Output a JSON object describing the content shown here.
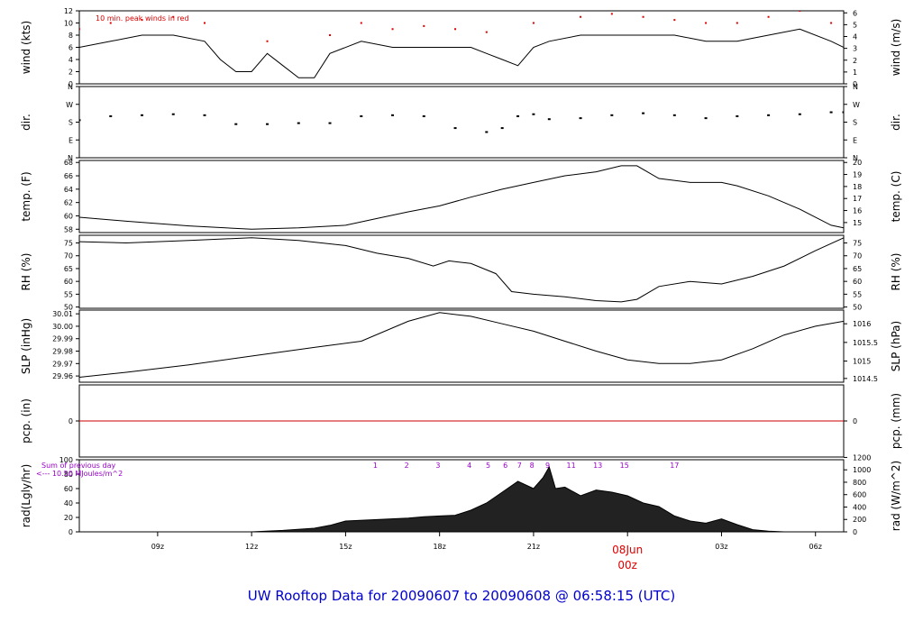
{
  "title": "UW Rooftop Data for 20090607  to  20090608 @ 06:58:15  (UTC)",
  "colors": {
    "line": "#000000",
    "peak": "#dd0000",
    "zero_line": "#cc0000",
    "annotation": "#9900cc",
    "title": "#0000cc",
    "radiation_fill": "#222222"
  },
  "time_axis": {
    "range_hours": [
      6.5,
      30.9
    ],
    "ticks": [
      {
        "hour": 9,
        "label": "09z"
      },
      {
        "hour": 12,
        "label": "12z"
      },
      {
        "hour": 15,
        "label": "15z"
      },
      {
        "hour": 18,
        "label": "18z"
      },
      {
        "hour": 21,
        "label": "21z"
      },
      {
        "hour": 27,
        "label": "03z"
      },
      {
        "hour": 30,
        "label": "06z"
      }
    ],
    "day_marker": {
      "hour": 24,
      "date": "08Jun",
      "label": "00z"
    }
  },
  "chart_data": [
    {
      "type": "line",
      "ylabel": "wind (kts)",
      "ylabel_right": "wind (m/s)",
      "ylim": [
        0,
        12
      ],
      "yticks": [
        {
          "v": 0,
          "l": "0"
        },
        {
          "v": 2,
          "l": "2"
        },
        {
          "v": 4,
          "l": "4"
        },
        {
          "v": 6,
          "l": "6"
        },
        {
          "v": 8,
          "l": "8"
        },
        {
          "v": 10,
          "l": "10"
        },
        {
          "v": 12,
          "l": "12"
        }
      ],
      "yticks_right": [
        {
          "v": 0,
          "l": "0"
        },
        {
          "v": 1.944,
          "l": "1"
        },
        {
          "v": 3.888,
          "l": "2"
        },
        {
          "v": 5.832,
          "l": "3"
        },
        {
          "v": 7.776,
          "l": "4"
        },
        {
          "v": 9.72,
          "l": "5"
        },
        {
          "v": 11.664,
          "l": "6"
        }
      ],
      "annotation": "10 min. peak winds in red",
      "series": [
        {
          "x": [
            6.5,
            7.5,
            8.5,
            9.5,
            10.5,
            11.0,
            11.5,
            12.0,
            12.5,
            13.0,
            13.5,
            14.0,
            14.5,
            15.5,
            16.5,
            17.5,
            18.5,
            19.0,
            19.5,
            20.0,
            20.5,
            21.0,
            21.5,
            22.5,
            23.5,
            24.5,
            25.5,
            26.5,
            27.5,
            28.5,
            29.5,
            30.5,
            30.9
          ],
          "y": [
            6,
            7,
            8,
            8,
            7,
            4,
            2,
            2,
            5,
            3,
            1,
            1,
            5,
            7,
            6,
            6,
            6,
            6,
            5,
            4,
            3,
            6,
            7,
            8,
            8,
            8,
            8,
            7,
            7,
            8,
            9,
            7,
            6
          ]
        }
      ],
      "peaks": {
        "x": [
          6.5,
          7.5,
          8.5,
          9.5,
          10.5,
          12.5,
          14.5,
          15.5,
          16.5,
          17.5,
          18.5,
          19.5,
          21.0,
          22.5,
          23.5,
          24.5,
          25.5,
          26.5,
          27.5,
          28.5,
          29.5,
          30.5
        ],
        "y": [
          9,
          10,
          10.5,
          11,
          10,
          7,
          8,
          10,
          9,
          9.5,
          9,
          8.5,
          10,
          11,
          11.5,
          11,
          10.5,
          10,
          10,
          11,
          12,
          10
        ]
      }
    },
    {
      "type": "scatter",
      "ylabel": "dir.",
      "ylabel_right": "dir.",
      "ylim": [
        0,
        360
      ],
      "yticks": [
        {
          "v": 0,
          "l": "N"
        },
        {
          "v": 90,
          "l": "E"
        },
        {
          "v": 180,
          "l": "S"
        },
        {
          "v": 270,
          "l": "W"
        },
        {
          "v": 360,
          "l": "N"
        }
      ],
      "yticks_right": [
        {
          "v": 0,
          "l": "N"
        },
        {
          "v": 90,
          "l": "E"
        },
        {
          "v": 180,
          "l": "S"
        },
        {
          "v": 270,
          "l": "W"
        },
        {
          "v": 360,
          "l": "N"
        }
      ],
      "series": [
        {
          "x": [
            6.5,
            7.5,
            8.5,
            9.5,
            10.5,
            11.5,
            12.5,
            13.5,
            14.5,
            15.5,
            16.5,
            17.5,
            18.5,
            19.5,
            20.0,
            20.5,
            21.0,
            21.5,
            22.5,
            23.5,
            24.5,
            25.5,
            26.5,
            27.5,
            28.5,
            29.5,
            30.5,
            30.9
          ],
          "y": [
            190,
            210,
            215,
            220,
            215,
            170,
            170,
            175,
            175,
            210,
            215,
            210,
            150,
            130,
            150,
            210,
            220,
            195,
            200,
            215,
            225,
            215,
            200,
            210,
            215,
            220,
            230,
            230
          ]
        }
      ]
    },
    {
      "type": "line",
      "ylabel": "temp. (F)",
      "ylabel_right": "temp. (C)",
      "ylim": [
        57.5,
        68.3
      ],
      "yticks": [
        {
          "v": 58,
          "l": "58"
        },
        {
          "v": 60,
          "l": "60"
        },
        {
          "v": 62,
          "l": "62"
        },
        {
          "v": 64,
          "l": "64"
        },
        {
          "v": 66,
          "l": "66"
        },
        {
          "v": 68,
          "l": "68"
        }
      ],
      "yticks_right": [
        {
          "v": 59,
          "l": "15"
        },
        {
          "v": 60.8,
          "l": "16"
        },
        {
          "v": 62.6,
          "l": "17"
        },
        {
          "v": 64.4,
          "l": "18"
        },
        {
          "v": 66.2,
          "l": "19"
        },
        {
          "v": 68,
          "l": "20"
        }
      ],
      "series": [
        {
          "x": [
            6.5,
            8.0,
            10.0,
            12.0,
            13.5,
            15.0,
            16.0,
            17.0,
            18.0,
            19.0,
            20.0,
            21.0,
            22.0,
            23.0,
            23.8,
            24.3,
            25.0,
            26.0,
            27.0,
            27.5,
            28.5,
            29.5,
            30.5,
            30.9
          ],
          "y": [
            59.8,
            59.2,
            58.5,
            58.0,
            58.2,
            58.6,
            59.6,
            60.6,
            61.5,
            62.8,
            64.0,
            65.0,
            66.0,
            66.6,
            67.5,
            67.5,
            65.6,
            65.0,
            65.0,
            64.5,
            63.0,
            61.0,
            58.6,
            58.2
          ]
        }
      ]
    },
    {
      "type": "line",
      "ylabel": "RH (%)",
      "ylabel_right": "RH (%)",
      "ylim": [
        49.5,
        78
      ],
      "yticks": [
        {
          "v": 50,
          "l": "50"
        },
        {
          "v": 55,
          "l": "55"
        },
        {
          "v": 60,
          "l": "60"
        },
        {
          "v": 65,
          "l": "65"
        },
        {
          "v": 70,
          "l": "70"
        },
        {
          "v": 75,
          "l": "75"
        }
      ],
      "yticks_right": [
        {
          "v": 50,
          "l": "50"
        },
        {
          "v": 55,
          "l": "55"
        },
        {
          "v": 60,
          "l": "60"
        },
        {
          "v": 65,
          "l": "65"
        },
        {
          "v": 70,
          "l": "70"
        },
        {
          "v": 75,
          "l": "75"
        }
      ],
      "series": [
        {
          "x": [
            6.5,
            8.0,
            10.0,
            12.0,
            13.5,
            15.0,
            16.0,
            17.0,
            17.8,
            18.3,
            19.0,
            19.8,
            20.3,
            21.0,
            22.0,
            23.0,
            23.8,
            24.3,
            25.0,
            26.0,
            27.0,
            28.0,
            29.0,
            30.0,
            30.9
          ],
          "y": [
            75.5,
            75.0,
            76.0,
            77.0,
            76.0,
            74.0,
            71.0,
            69.0,
            66.0,
            68.0,
            67.0,
            63.0,
            56.0,
            55.0,
            54.0,
            52.5,
            52.0,
            53.0,
            58.0,
            60.0,
            59.0,
            62.0,
            66.0,
            72.0,
            77.0
          ]
        }
      ]
    },
    {
      "type": "line",
      "ylabel": "SLP (inHg)",
      "ylabel_right": "SLP (hPa)",
      "ylim": [
        29.955,
        30.013
      ],
      "yticks": [
        {
          "v": 29.96,
          "l": "29.96"
        },
        {
          "v": 29.97,
          "l": "29.97"
        },
        {
          "v": 29.98,
          "l": "29.98"
        },
        {
          "v": 29.99,
          "l": "29.99"
        },
        {
          "v": 30.0,
          "l": "30.00"
        },
        {
          "v": 30.01,
          "l": "30.01"
        }
      ],
      "yticks_right": [
        {
          "v": 29.958,
          "l": "1014.5"
        },
        {
          "v": 29.972,
          "l": "1015"
        },
        {
          "v": 29.987,
          "l": "1015.5"
        },
        {
          "v": 30.002,
          "l": "1016"
        }
      ],
      "series": [
        {
          "x": [
            6.5,
            8.0,
            10.0,
            12.0,
            14.0,
            15.5,
            17.0,
            18.0,
            19.0,
            20.0,
            21.0,
            22.0,
            23.0,
            24.0,
            25.0,
            26.0,
            27.0,
            28.0,
            29.0,
            30.0,
            30.9
          ],
          "y": [
            29.959,
            29.963,
            29.969,
            29.976,
            29.983,
            29.988,
            30.004,
            30.011,
            30.008,
            30.002,
            29.996,
            29.988,
            29.98,
            29.973,
            29.97,
            29.97,
            29.973,
            29.982,
            29.993,
            30.0,
            30.004
          ]
        }
      ]
    },
    {
      "type": "line",
      "ylabel": "pcp. (in)",
      "ylabel_right": "pcp. (mm)",
      "ylim": [
        -1,
        1
      ],
      "yticks": [
        {
          "v": 0,
          "l": "0"
        }
      ],
      "yticks_right": [
        {
          "v": 0,
          "l": "0"
        }
      ],
      "series": [
        {
          "x": [
            6.5,
            30.9
          ],
          "y": [
            0,
            0
          ]
        }
      ]
    },
    {
      "type": "area",
      "ylabel": "rad(Lgly/hr)",
      "ylabel_right": "rad (W/m^2)",
      "ylim": [
        0,
        100
      ],
      "yticks": [
        {
          "v": 0,
          "l": "0"
        },
        {
          "v": 20,
          "l": "20"
        },
        {
          "v": 40,
          "l": "40"
        },
        {
          "v": 60,
          "l": "60"
        },
        {
          "v": 80,
          "l": "80"
        },
        {
          "v": 100,
          "l": "100"
        }
      ],
      "yticks_right": [
        {
          "v": 0,
          "l": "0"
        },
        {
          "v": 17.2,
          "l": "200"
        },
        {
          "v": 34.4,
          "l": "400"
        },
        {
          "v": 51.6,
          "l": "600"
        },
        {
          "v": 68.8,
          "l": "800"
        },
        {
          "v": 86.0,
          "l": "1000"
        },
        {
          "v": 103.2,
          "l": "1200"
        }
      ],
      "annotation_lines": [
        "Sum of previous day",
        "<--- 10.50 MJoules/m^2"
      ],
      "hour_markers": [
        {
          "hour": 15.95,
          "label": "1"
        },
        {
          "hour": 16.95,
          "label": "2"
        },
        {
          "hour": 17.95,
          "label": "3"
        },
        {
          "hour": 18.95,
          "label": "4"
        },
        {
          "hour": 19.55,
          "label": "5"
        },
        {
          "hour": 20.1,
          "label": "6"
        },
        {
          "hour": 20.55,
          "label": "7"
        },
        {
          "hour": 20.95,
          "label": "8"
        },
        {
          "hour": 21.45,
          "label": "9"
        },
        {
          "hour": 22.2,
          "label": "11"
        },
        {
          "hour": 23.05,
          "label": "13"
        },
        {
          "hour": 23.9,
          "label": "15"
        },
        {
          "hour": 25.5,
          "label": "17"
        }
      ],
      "series": [
        {
          "x": [
            12.0,
            13.0,
            14.0,
            14.5,
            15.0,
            16.0,
            17.0,
            17.5,
            18.0,
            18.5,
            19.0,
            19.5,
            20.0,
            20.5,
            21.0,
            21.3,
            21.5,
            21.7,
            22.0,
            22.5,
            23.0,
            23.5,
            24.0,
            24.5,
            25.0,
            25.5,
            26.0,
            26.5,
            27.0,
            27.5,
            28.0,
            28.5,
            29.0
          ],
          "y": [
            0,
            2,
            5,
            9,
            15,
            17,
            19,
            21,
            22,
            23,
            30,
            40,
            55,
            70,
            60,
            75,
            90,
            60,
            62,
            50,
            58,
            55,
            50,
            40,
            35,
            22,
            15,
            12,
            18,
            10,
            3,
            1,
            0
          ]
        }
      ]
    }
  ]
}
